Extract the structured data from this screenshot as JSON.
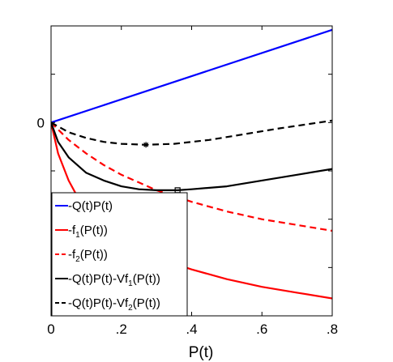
{
  "chart_data": {
    "type": "line",
    "title": "",
    "xlabel": "P(t)",
    "ylabel": "",
    "xlim": [
      0,
      0.8
    ],
    "ylim": [
      -1.0,
      0.5
    ],
    "x_ticks": [
      {
        "value": 0,
        "label": "0"
      },
      {
        "value": 0.2,
        "label": ".2"
      },
      {
        "value": 0.4,
        "label": ".4"
      },
      {
        "value": 0.6,
        "label": ".6"
      },
      {
        "value": 0.8,
        "label": ".8"
      }
    ],
    "y_ticks": [
      {
        "value": 0,
        "label": "0"
      }
    ],
    "y_minor_ticks": [
      0.25,
      -0.25,
      -0.5,
      -0.75
    ],
    "grid": false,
    "legend_position": "bottom-left",
    "series": [
      {
        "legend_text": "-Q(t)P(t)",
        "legend_sub": "",
        "legend_suffix": "",
        "color": "#0000ff",
        "dash": "solid",
        "x": [
          0,
          0.8
        ],
        "y": [
          0,
          0.48
        ]
      },
      {
        "legend_text": "-f",
        "legend_sub": "1",
        "legend_suffix": "(P(t))",
        "color": "#ff0000",
        "dash": "solid",
        "x": [
          0,
          0.02,
          0.05,
          0.08,
          0.12,
          0.16,
          0.2,
          0.25,
          0.3,
          0.4,
          0.5,
          0.6,
          0.7,
          0.8
        ],
        "y": [
          0,
          -0.16,
          -0.3,
          -0.4,
          -0.5,
          -0.57,
          -0.62,
          -0.66,
          -0.7,
          -0.76,
          -0.81,
          -0.85,
          -0.88,
          -0.91
        ]
      },
      {
        "legend_text": "-f",
        "legend_sub": "2",
        "legend_suffix": "(P(t))",
        "color": "#ff0000",
        "dash": "dashed",
        "x": [
          0,
          0.05,
          0.1,
          0.15,
          0.2,
          0.25,
          0.3,
          0.35,
          0.4,
          0.5,
          0.6,
          0.7,
          0.8
        ],
        "y": [
          0,
          -0.09,
          -0.16,
          -0.22,
          -0.27,
          -0.31,
          -0.35,
          -0.38,
          -0.41,
          -0.46,
          -0.5,
          -0.53,
          -0.56
        ]
      },
      {
        "legend_text": "-Q(t)P(t)-Vf",
        "legend_sub": "1",
        "legend_suffix": "(P(t))",
        "color": "#000000",
        "dash": "solid",
        "x": [
          0,
          0.02,
          0.05,
          0.1,
          0.15,
          0.2,
          0.25,
          0.3,
          0.36,
          0.4,
          0.5,
          0.6,
          0.7,
          0.8
        ],
        "y": [
          0,
          -0.1,
          -0.18,
          -0.26,
          -0.3,
          -0.33,
          -0.345,
          -0.35,
          -0.35,
          -0.345,
          -0.33,
          -0.3,
          -0.27,
          -0.24
        ]
      },
      {
        "legend_text": "-Q(t)P(t)-Vf",
        "legend_sub": "2",
        "legend_suffix": "(P(t))",
        "color": "#000000",
        "dash": "dashed",
        "x": [
          0,
          0.05,
          0.1,
          0.15,
          0.2,
          0.27,
          0.35,
          0.45,
          0.55,
          0.65,
          0.8
        ],
        "y": [
          0,
          -0.05,
          -0.08,
          -0.1,
          -0.11,
          -0.115,
          -0.11,
          -0.09,
          -0.06,
          -0.03,
          0.01
        ]
      }
    ],
    "markers": [
      {
        "symbol": "*",
        "x": 0.27,
        "y": -0.115,
        "color": "#000000"
      },
      {
        "symbol": "square",
        "x": 0.36,
        "y": -0.35,
        "color": "#000000"
      }
    ]
  }
}
